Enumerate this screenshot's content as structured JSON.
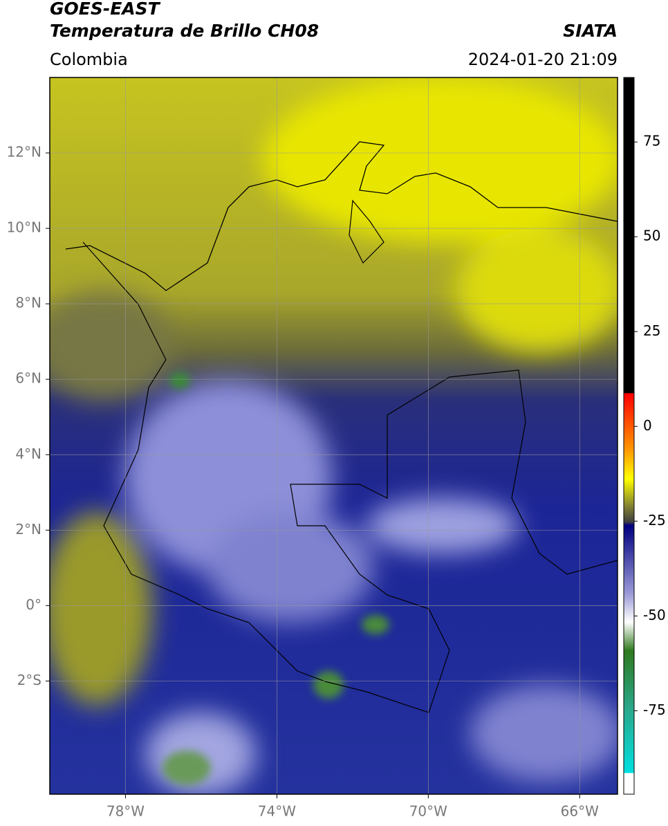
{
  "header": {
    "title_1": "GOES-EAST",
    "title_2": "Temperatura de Brillo CH08",
    "agency": "SIATA",
    "region": "Colombia",
    "timestamp": "2024-01-20 21:09"
  },
  "map": {
    "xlim": [
      -80,
      -65
    ],
    "ylim": [
      -5,
      14
    ],
    "x_ticks": [
      {
        "value": -78,
        "label": "78°W"
      },
      {
        "value": -74,
        "label": "74°W"
      },
      {
        "value": -70,
        "label": "70°W"
      },
      {
        "value": -66,
        "label": "66°W"
      }
    ],
    "y_ticks": [
      {
        "value": 12,
        "label": "12°N"
      },
      {
        "value": 10,
        "label": "10°N"
      },
      {
        "value": 8,
        "label": "8°N"
      },
      {
        "value": 6,
        "label": "6°N"
      },
      {
        "value": 4,
        "label": "4°N"
      },
      {
        "value": 2,
        "label": "2°N"
      },
      {
        "value": 0,
        "label": "0°"
      },
      {
        "value": -2,
        "label": "2°S"
      }
    ]
  },
  "colorbar": {
    "lim": [
      -97,
      92
    ],
    "ticks": [
      75,
      50,
      25,
      0,
      -25,
      -50,
      -75
    ]
  }
}
